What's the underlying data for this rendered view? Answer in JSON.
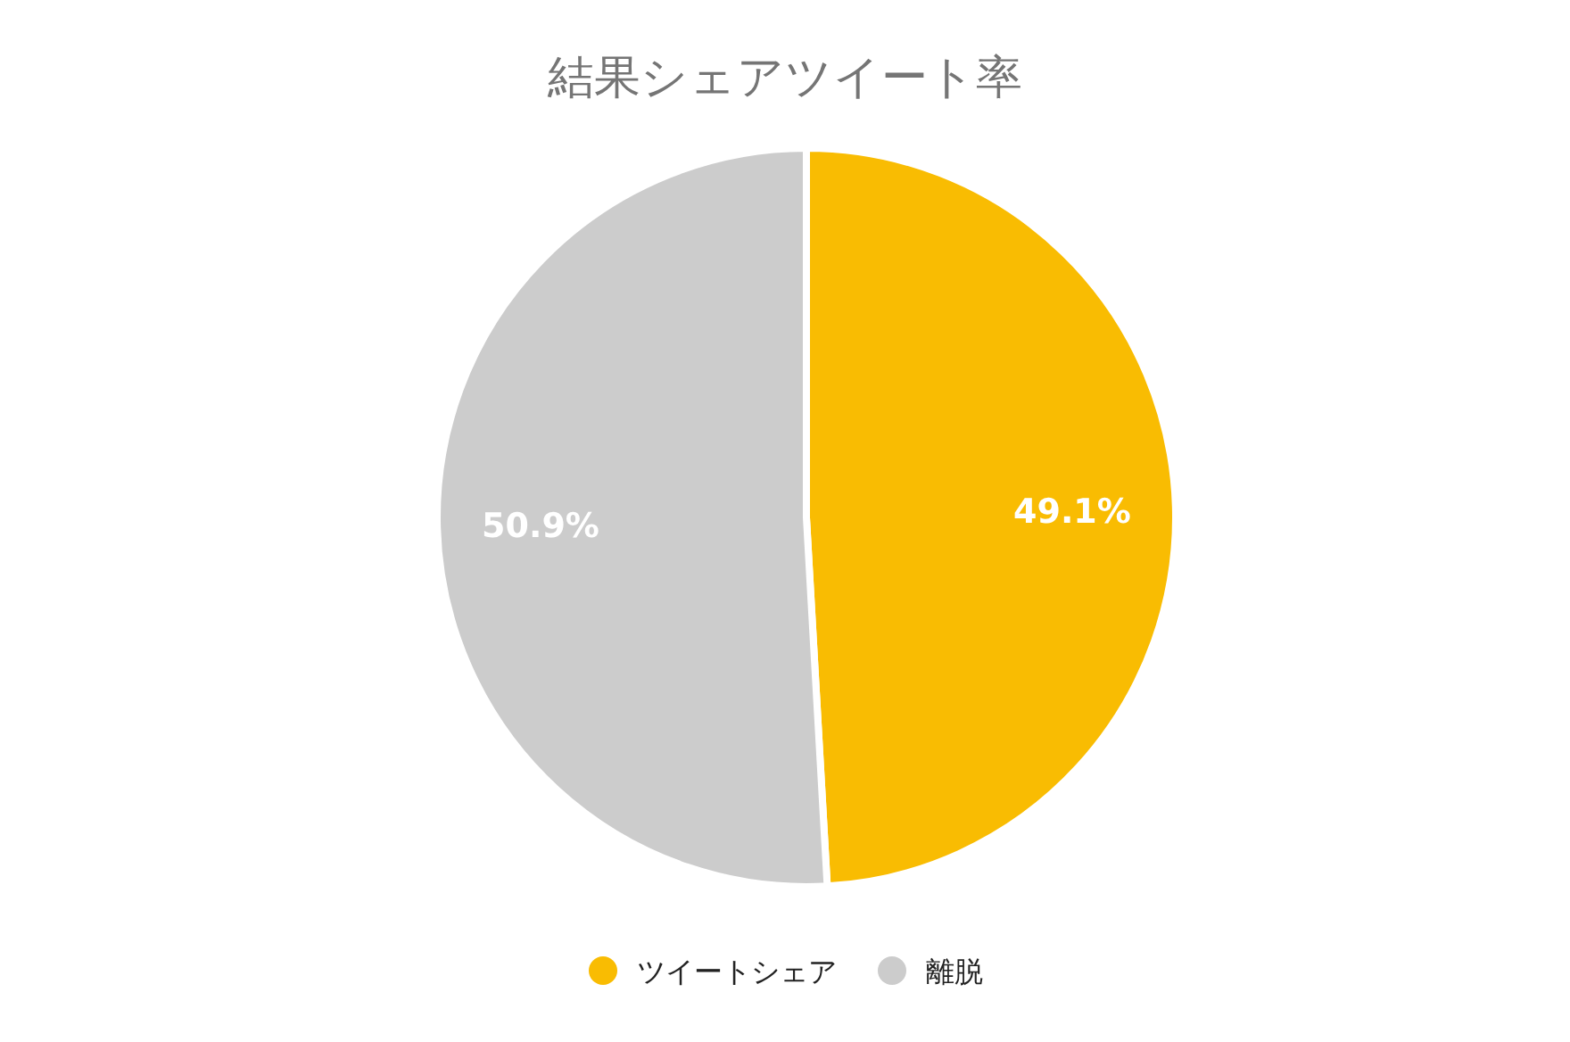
{
  "chart_data": {
    "type": "pie",
    "title": "結果シェアツイート率",
    "categories": [
      "ツイートシェア",
      "離脱"
    ],
    "values": [
      49.1,
      50.9
    ],
    "colors": [
      "#f9bc02",
      "#cccccc"
    ],
    "value_labels": [
      "49.1%",
      "50.9%"
    ],
    "legend": "bottom"
  }
}
